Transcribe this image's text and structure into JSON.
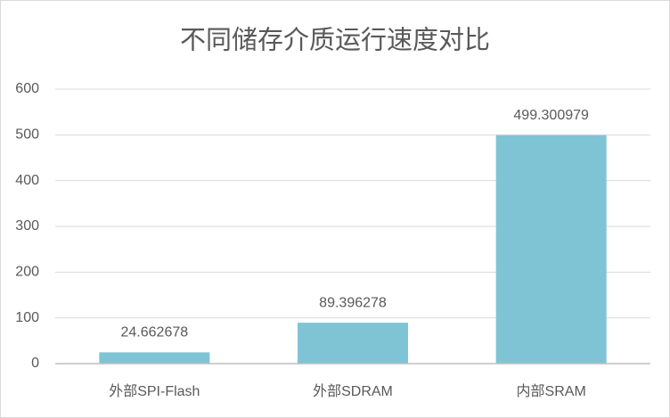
{
  "chart_data": {
    "type": "bar",
    "title": "不同储存介质运行速度对比",
    "categories": [
      "外部SPI-Flash",
      "外部SDRAM",
      "内部SRAM"
    ],
    "values": [
      24.662678,
      89.396278,
      499.300979
    ],
    "color": "#7fc4d4",
    "ylim": [
      0,
      600
    ],
    "yticks": [
      0,
      100,
      200,
      300,
      400,
      500,
      600
    ],
    "grid": true
  }
}
